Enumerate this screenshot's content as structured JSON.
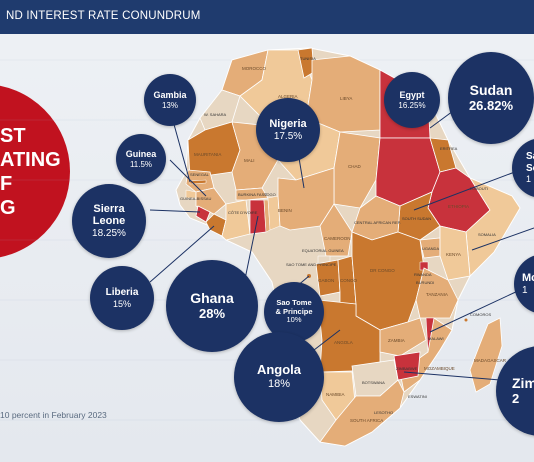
{
  "header": {
    "title": "ND INTEREST RATE CONUNDRUM"
  },
  "left_panel": {
    "lines": [
      "ST",
      "ATING",
      "F",
      "G"
    ]
  },
  "footnote": "10 percent in February 2023",
  "colors": {
    "header_bg": "#1f3b6e",
    "bubble_bg": "#1c3264",
    "left_panel": "#c1121f",
    "high_rate": "#c8323c",
    "mid_rate": "#c9782f",
    "low_rate": "#e4ad78",
    "lightest": "#f0c999",
    "land_grey": "#e7d7c2"
  },
  "bubbles": [
    {
      "country": "Gambia",
      "rate": "13%"
    },
    {
      "country": "Nigeria",
      "rate": "17.5%"
    },
    {
      "country": "Egypt",
      "rate": "16.25%"
    },
    {
      "country": "Sudan",
      "rate": "26.82%"
    },
    {
      "country": "Guinea",
      "rate": "11.5%"
    },
    {
      "country": "Sierra Leone",
      "country_lines": [
        "Sierra",
        "Leone"
      ],
      "rate": "18.25%"
    },
    {
      "country": "Liberia",
      "rate": "15%"
    },
    {
      "country": "Ghana",
      "rate": "28%"
    },
    {
      "country": "Sao Tome & Principe",
      "country_lines": [
        "Sao Tome",
        "& Principe"
      ],
      "rate": "10%"
    },
    {
      "country": "Angola",
      "rate": "18%"
    },
    {
      "country_partial": "Sa",
      "country_partial_2": "Se",
      "rate_partial": "1"
    },
    {
      "country_partial": "Moz",
      "rate_partial": "1"
    },
    {
      "country_partial": "Zim",
      "rate_partial": "2"
    }
  ],
  "map_labels": {
    "morocco": "MOROCCO",
    "algeria": "ALGERIA",
    "libya": "LIBYA",
    "mali": "MALI",
    "niger": "NIGER",
    "chad": "CHAD",
    "mauritania": "MAURITANIA",
    "ethiopia": "ETHIOPIA",
    "cameroon": "CAMEROON",
    "gabon": "GABON",
    "congo": "CONGO",
    "dr_congo": "DR CONGO",
    "tanzania": "TANZANIA",
    "kenya": "KENYA",
    "zambia": "ZAMBIA",
    "namibia": "NAMIBIA",
    "botswana": "BOTSWANA",
    "south_africa": "SOUTH AFRICA",
    "madagascar": "MADAGASCAR",
    "equatorial_guinea": "EQUATORIAL GUINEA",
    "sao_tome_label": "SAO TOME AND PRINCIPE",
    "togo": "TOGO",
    "benin": "BENIN",
    "burkina": "BURKINA FASO",
    "cote": "CÔTE D'IVOIRE",
    "senegal": "SENEGAL",
    "car": "CENTRAL AFRICAN REP.",
    "south_sudan": "SOUTH SUDAN",
    "somalia": "SOMALIA",
    "uganda": "UGANDA",
    "malawi": "MALAWI",
    "eswatini": "ESWATINI",
    "lesotho": "LESOTHO",
    "comoros": "COMOROS",
    "eritrea": "ERITREA",
    "djibouti": "DJIBOUTI",
    "tunisia": "TUNISIA",
    "western_sahara": "W. SAHARA",
    "guinea_bissau": "GUINEA-BISSAU",
    "rwanda": "RWANDA",
    "burundi": "BURUNDI",
    "mozambique": "MOZAMBIQUE",
    "zimbabwe": "ZIMBABWE",
    "angola": "ANGOLA"
  }
}
